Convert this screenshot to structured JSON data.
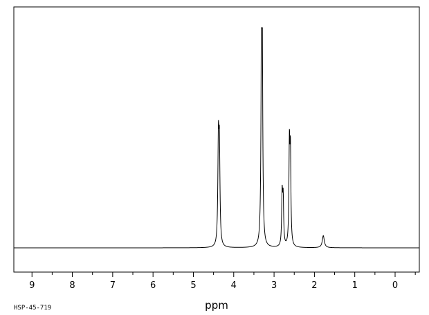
{
  "chart_data": {
    "type": "line",
    "title": "",
    "xlabel": "ppm",
    "ylabel": "",
    "x_reversed": true,
    "xlim": [
      9.45,
      -0.6
    ],
    "ylim": [
      -0.1,
      1.0
    ],
    "grid": false,
    "legend": "none",
    "x_ticks": [
      9,
      8,
      7,
      6,
      5,
      4,
      3,
      2,
      1,
      0
    ],
    "x_tick_labels": [
      "9",
      "8",
      "7",
      "6",
      "5",
      "4",
      "3",
      "2",
      "1",
      "0"
    ],
    "line_color": "#000000",
    "peaks": [
      {
        "x": 4.38,
        "height": 0.45,
        "width": 0.016
      },
      {
        "x": 4.355,
        "height": 0.42,
        "width": 0.016
      },
      {
        "x": 3.31,
        "height": 0.94,
        "width": 0.014
      },
      {
        "x": 3.295,
        "height": 0.91,
        "width": 0.014
      },
      {
        "x": 2.8,
        "height": 0.23,
        "width": 0.014
      },
      {
        "x": 2.775,
        "height": 0.21,
        "width": 0.014
      },
      {
        "x": 2.62,
        "height": 0.44,
        "width": 0.014
      },
      {
        "x": 2.595,
        "height": 0.4,
        "width": 0.014
      },
      {
        "x": 1.78,
        "height": 0.055,
        "width": 0.03
      }
    ]
  },
  "footer": {
    "sample_code": "HSP-45-719"
  }
}
